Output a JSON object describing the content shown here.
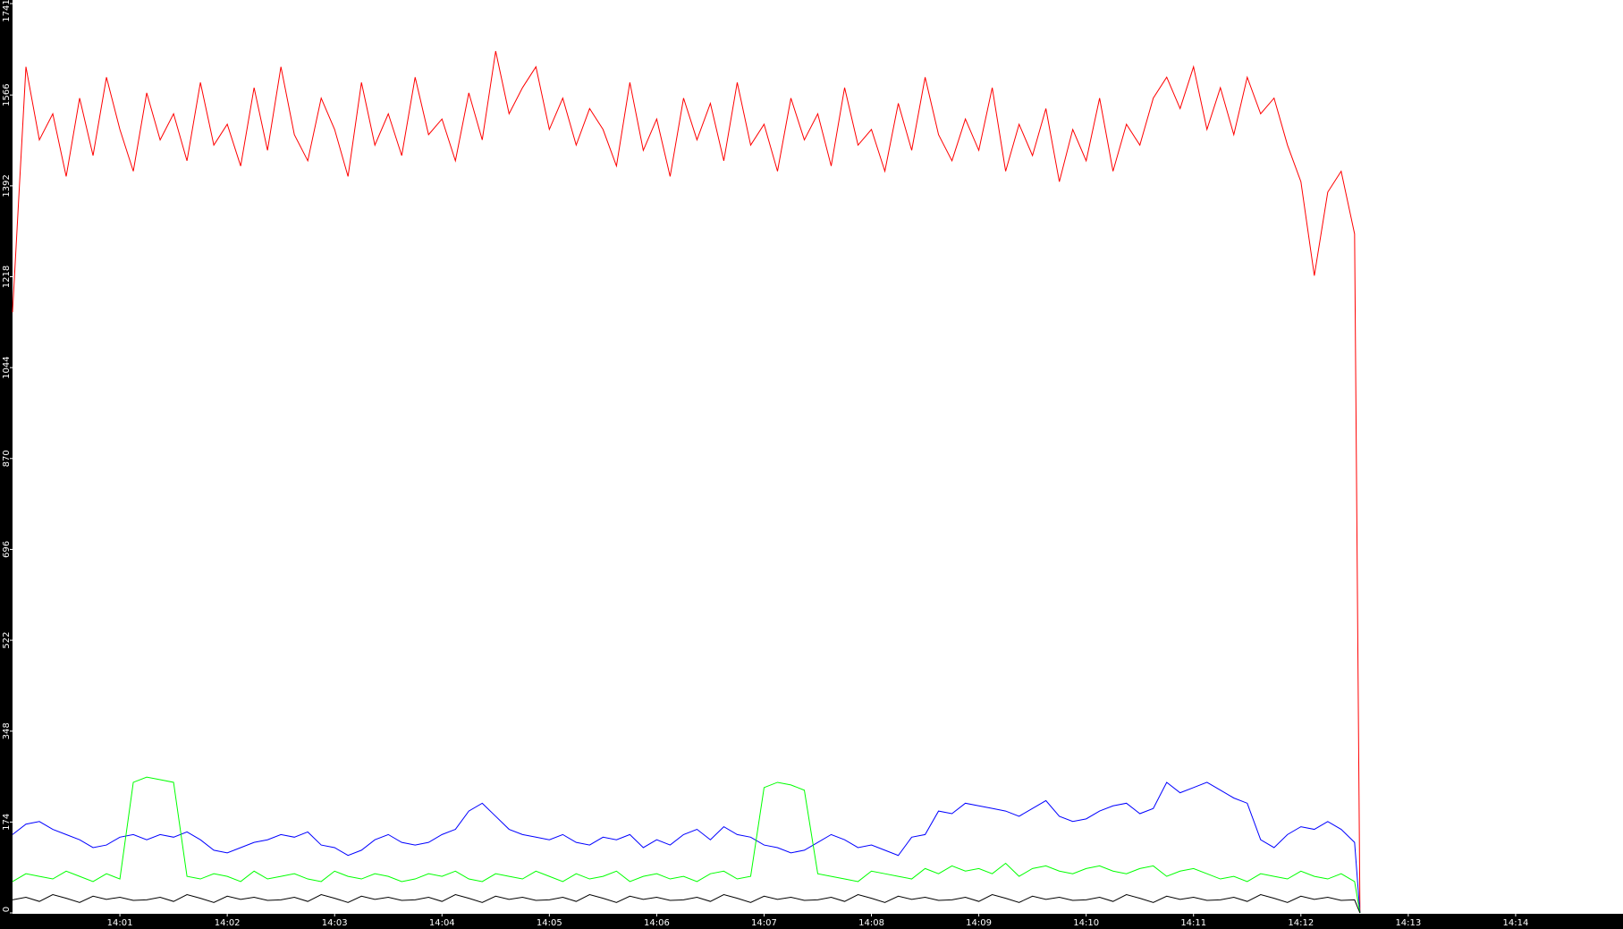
{
  "chart_data": {
    "type": "line",
    "x": [
      0,
      0.125,
      0.25,
      0.375,
      0.5,
      0.625,
      0.75,
      0.875,
      1,
      1.125,
      1.25,
      1.375,
      1.5,
      1.625,
      1.75,
      1.875,
      2,
      2.125,
      2.25,
      2.375,
      2.5,
      2.625,
      2.75,
      2.875,
      3,
      3.125,
      3.25,
      3.375,
      3.5,
      3.625,
      3.75,
      3.875,
      4,
      4.125,
      4.25,
      4.375,
      4.5,
      4.625,
      4.75,
      4.875,
      5,
      5.125,
      5.25,
      5.375,
      5.5,
      5.625,
      5.75,
      5.875,
      6,
      6.125,
      6.25,
      6.375,
      6.5,
      6.625,
      6.75,
      6.875,
      7,
      7.125,
      7.25,
      7.375,
      7.5,
      7.625,
      7.75,
      7.875,
      8,
      8.125,
      8.25,
      8.375,
      8.5,
      8.625,
      8.75,
      8.875,
      9,
      9.125,
      9.25,
      9.375,
      9.5,
      9.625,
      9.75,
      9.875,
      10,
      10.125,
      10.25,
      10.375,
      10.5,
      10.625,
      10.75,
      10.875,
      11,
      11.125,
      11.25,
      11.375,
      11.5,
      11.625,
      11.75,
      11.875,
      12,
      12.125,
      12.25,
      12.375,
      12.5,
      12.55
    ],
    "series": [
      {
        "color": "#ff0000",
        "values": [
          1150,
          1620,
          1480,
          1530,
          1410,
          1560,
          1450,
          1600,
          1500,
          1420,
          1570,
          1480,
          1530,
          1440,
          1590,
          1470,
          1510,
          1430,
          1580,
          1460,
          1620,
          1490,
          1440,
          1560,
          1500,
          1410,
          1590,
          1470,
          1530,
          1450,
          1600,
          1490,
          1520,
          1440,
          1570,
          1480,
          1650,
          1530,
          1580,
          1620,
          1500,
          1560,
          1470,
          1540,
          1500,
          1430,
          1590,
          1460,
          1520,
          1410,
          1560,
          1480,
          1550,
          1440,
          1590,
          1470,
          1510,
          1420,
          1560,
          1480,
          1530,
          1430,
          1580,
          1470,
          1500,
          1420,
          1550,
          1460,
          1600,
          1490,
          1440,
          1520,
          1460,
          1580,
          1420,
          1510,
          1450,
          1540,
          1400,
          1500,
          1440,
          1560,
          1420,
          1510,
          1470,
          1560,
          1600,
          1540,
          1620,
          1500,
          1580,
          1490,
          1600,
          1530,
          1560,
          1470,
          1400,
          1220,
          1380,
          1420,
          1300,
          0
        ]
      },
      {
        "color": "#0000ff",
        "values": [
          150,
          170,
          175,
          160,
          150,
          140,
          125,
          130,
          145,
          150,
          140,
          150,
          145,
          155,
          140,
          120,
          115,
          125,
          135,
          140,
          150,
          145,
          155,
          130,
          125,
          110,
          120,
          140,
          150,
          135,
          130,
          135,
          150,
          160,
          195,
          210,
          185,
          160,
          150,
          145,
          140,
          150,
          135,
          130,
          145,
          140,
          150,
          125,
          140,
          130,
          150,
          160,
          140,
          165,
          150,
          145,
          130,
          125,
          115,
          120,
          135,
          150,
          140,
          125,
          130,
          120,
          110,
          145,
          150,
          195,
          190,
          210,
          205,
          200,
          195,
          185,
          200,
          215,
          185,
          175,
          180,
          195,
          205,
          210,
          190,
          200,
          250,
          230,
          240,
          250,
          235,
          220,
          210,
          140,
          125,
          150,
          165,
          160,
          175,
          160,
          135,
          0
        ]
      },
      {
        "color": "#00ff00",
        "values": [
          60,
          75,
          70,
          65,
          80,
          70,
          60,
          75,
          65,
          250,
          260,
          255,
          250,
          70,
          65,
          75,
          70,
          60,
          80,
          65,
          70,
          75,
          65,
          60,
          80,
          70,
          65,
          75,
          70,
          60,
          65,
          75,
          70,
          80,
          65,
          60,
          75,
          70,
          65,
          80,
          70,
          60,
          75,
          65,
          70,
          80,
          60,
          70,
          75,
          65,
          70,
          60,
          75,
          80,
          65,
          70,
          240,
          250,
          245,
          235,
          75,
          70,
          65,
          60,
          80,
          75,
          70,
          65,
          85,
          75,
          90,
          80,
          85,
          75,
          95,
          70,
          85,
          90,
          80,
          75,
          85,
          90,
          80,
          75,
          85,
          90,
          70,
          80,
          85,
          75,
          65,
          70,
          60,
          75,
          70,
          65,
          80,
          70,
          65,
          75,
          60,
          0
        ]
      },
      {
        "color": "#000000",
        "values": [
          25,
          30,
          22,
          35,
          28,
          20,
          32,
          26,
          30,
          24,
          25,
          30,
          22,
          35,
          28,
          20,
          32,
          26,
          30,
          24,
          25,
          30,
          22,
          35,
          28,
          20,
          32,
          26,
          30,
          24,
          25,
          30,
          22,
          35,
          28,
          20,
          32,
          26,
          30,
          24,
          25,
          30,
          22,
          35,
          28,
          20,
          32,
          26,
          30,
          24,
          25,
          30,
          22,
          35,
          28,
          20,
          32,
          26,
          30,
          24,
          25,
          30,
          22,
          35,
          28,
          20,
          32,
          26,
          30,
          24,
          25,
          30,
          22,
          35,
          28,
          20,
          32,
          26,
          30,
          24,
          25,
          30,
          22,
          35,
          28,
          20,
          32,
          26,
          30,
          24,
          25,
          30,
          22,
          35,
          28,
          20,
          32,
          26,
          30,
          24,
          25,
          0
        ]
      }
    ],
    "xlim": [
      0,
      15
    ],
    "xticks": [
      {
        "value": 1,
        "label": "14:01"
      },
      {
        "value": 2,
        "label": "14:02"
      },
      {
        "value": 3,
        "label": "14:03"
      },
      {
        "value": 4,
        "label": "14:04"
      },
      {
        "value": 5,
        "label": "14:05"
      },
      {
        "value": 6,
        "label": "14:06"
      },
      {
        "value": 7,
        "label": "14:07"
      },
      {
        "value": 8,
        "label": "14:08"
      },
      {
        "value": 9,
        "label": "14:09"
      },
      {
        "value": 10,
        "label": "14:10"
      },
      {
        "value": 11,
        "label": "14:11"
      },
      {
        "value": 12,
        "label": "14:12"
      },
      {
        "value": 13,
        "label": "14:13"
      },
      {
        "value": 14,
        "label": "14:14"
      }
    ],
    "ylim": [
      0,
      1741
    ],
    "yticks": [
      0,
      174,
      348,
      522,
      696,
      870,
      1044,
      1218,
      1392,
      1566,
      1741
    ],
    "grid": false
  }
}
